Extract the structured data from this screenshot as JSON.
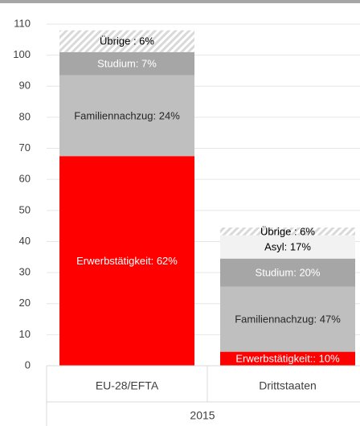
{
  "chart_data": {
    "type": "stacked_bar",
    "categories": [
      "EU-28/EFTA",
      "Drittstaaten"
    ],
    "group_label": "2015",
    "ylim": [
      0,
      110
    ],
    "yticks": [
      0,
      10,
      20,
      30,
      40,
      50,
      60,
      70,
      80,
      90,
      100,
      110
    ],
    "grid": true,
    "series": [
      {
        "color": "#ff0000",
        "label_color": "#ffffff",
        "hatch": false,
        "values": [
          67.5,
          4.5
        ],
        "value_labels": [
          "Erwerbstätigkeit:  62%",
          "Erwerbstätigkeit:: 10%"
        ]
      },
      {
        "color": "#bfbfbf",
        "label_color": "#262626",
        "hatch": false,
        "values": [
          26,
          21
        ],
        "value_labels": [
          "Familiennachzug: 24%",
          "Familiennachzug: 47%"
        ]
      },
      {
        "color": "#a6a6a6",
        "label_color": "#ffffff",
        "hatch": false,
        "values": [
          7.5,
          9
        ],
        "value_labels": [
          "Studium: 7%",
          "Studium: 20%"
        ]
      },
      {
        "color": "#f2f2f2",
        "label_color": "#000000",
        "hatch": false,
        "values": [
          null,
          7.5
        ],
        "value_labels": [
          null,
          "Asyl:  17%"
        ]
      },
      {
        "color": "#d9d9d9",
        "label_color": "#000000",
        "hatch": true,
        "values": [
          7,
          2.5
        ],
        "value_labels": [
          "Übrige : 6%",
          "Übrige :  6%"
        ]
      }
    ]
  }
}
